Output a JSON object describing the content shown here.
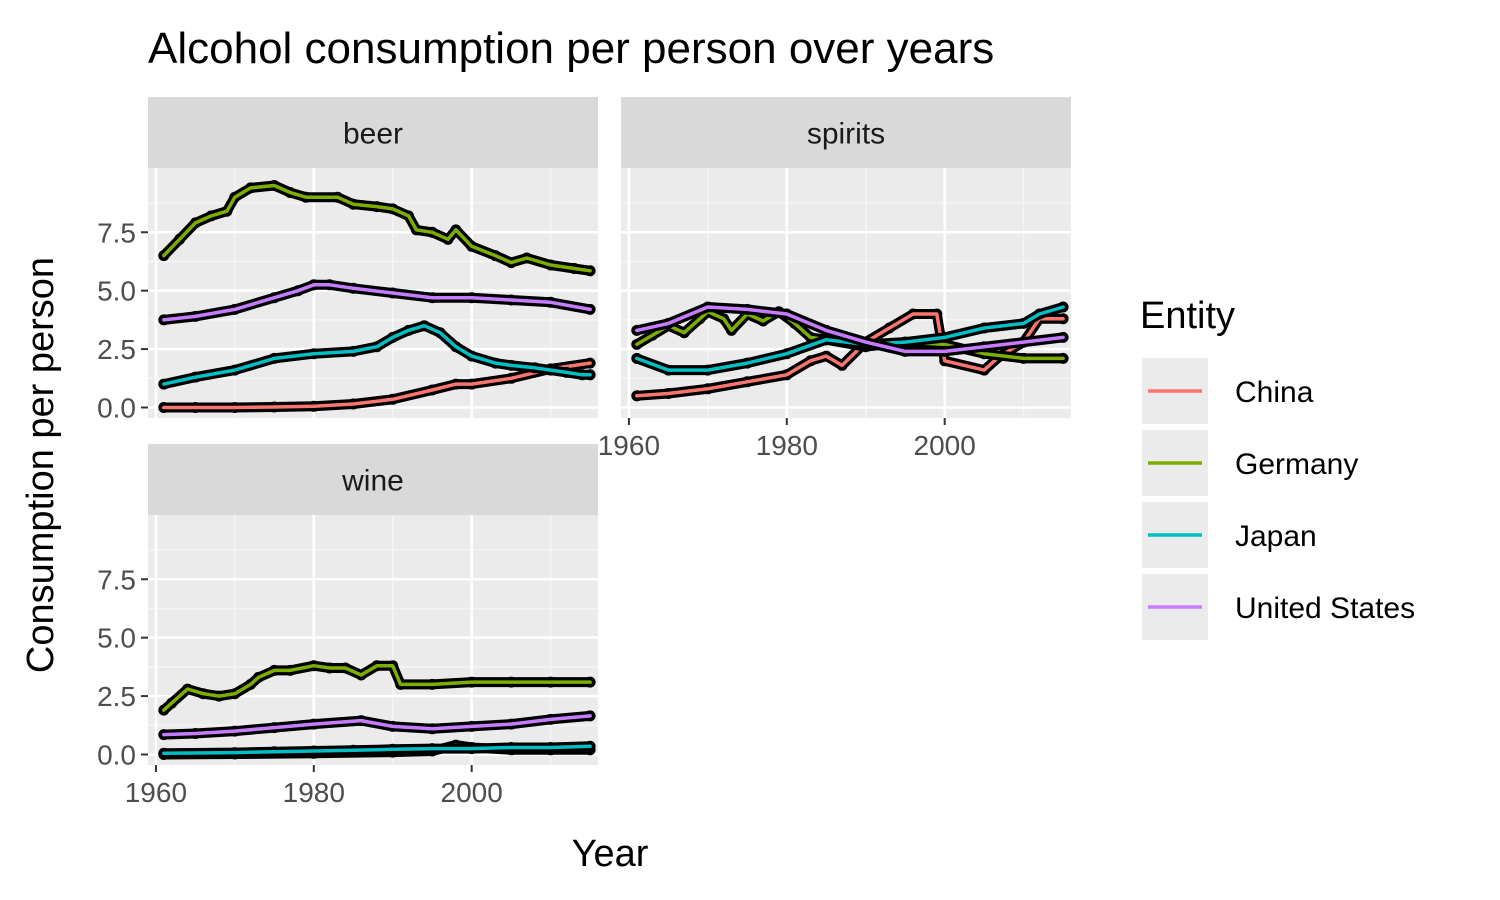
{
  "chart_data": {
    "type": "line",
    "title": "Alcohol consumption per person over years",
    "xlabel": "Year",
    "ylabel": "Consumption per person",
    "xlim": [
      1959,
      2016
    ],
    "ylim": [
      -0.45,
      10.25
    ],
    "x_ticks": [
      1960,
      1980,
      2000
    ],
    "y_ticks": [
      0.0,
      2.5,
      5.0,
      7.5
    ],
    "y_tick_labels": [
      "0.0",
      "2.5",
      "5.0",
      "7.5"
    ],
    "grid": true,
    "point_outline_color": "#000000",
    "legend": {
      "title": "Entity",
      "position": "right",
      "entries": [
        {
          "name": "China",
          "color": "#F8766D"
        },
        {
          "name": "Germany",
          "color": "#7CAE00"
        },
        {
          "name": "Japan",
          "color": "#00BFC4"
        },
        {
          "name": "United States",
          "color": "#C77CFF"
        }
      ]
    },
    "facets": [
      {
        "label": "beer",
        "series": [
          {
            "name": "China",
            "x": [
              1961,
              1965,
              1970,
              1975,
              1980,
              1985,
              1990,
              1995,
              1998,
              2000,
              2005,
              2010,
              2015
            ],
            "values": [
              0.0,
              0.0,
              0.0,
              0.02,
              0.05,
              0.15,
              0.35,
              0.75,
              1.0,
              1.0,
              1.25,
              1.65,
              1.9
            ]
          },
          {
            "name": "Germany",
            "x": [
              1961,
              1963,
              1965,
              1967,
              1969,
              1970,
              1972,
              1975,
              1977,
              1979,
              1983,
              1985,
              1988,
              1990,
              1992,
              1993,
              1995,
              1997,
              1998,
              2000,
              2003,
              2005,
              2007,
              2010,
              2013,
              2015
            ],
            "values": [
              6.5,
              7.2,
              7.9,
              8.2,
              8.4,
              9.0,
              9.4,
              9.5,
              9.2,
              9.0,
              9.0,
              8.7,
              8.6,
              8.5,
              8.2,
              7.6,
              7.5,
              7.2,
              7.6,
              6.9,
              6.5,
              6.2,
              6.4,
              6.1,
              5.95,
              5.85
            ]
          },
          {
            "name": "Japan",
            "x": [
              1961,
              1965,
              1970,
              1975,
              1980,
              1985,
              1988,
              1990,
              1992,
              1994,
              1996,
              1998,
              2000,
              2003,
              2005,
              2008,
              2010,
              2012,
              2014,
              2015
            ],
            "values": [
              1.0,
              1.3,
              1.6,
              2.1,
              2.3,
              2.4,
              2.6,
              3.0,
              3.3,
              3.5,
              3.2,
              2.6,
              2.2,
              1.9,
              1.8,
              1.7,
              1.6,
              1.5,
              1.4,
              1.4
            ]
          },
          {
            "name": "United States",
            "x": [
              1961,
              1965,
              1970,
              1975,
              1978,
              1980,
              1982,
              1985,
              1990,
              1995,
              2000,
              2005,
              2010,
              2015
            ],
            "values": [
              3.75,
              3.9,
              4.2,
              4.7,
              5.0,
              5.25,
              5.25,
              5.1,
              4.9,
              4.7,
              4.7,
              4.6,
              4.5,
              4.2
            ]
          }
        ]
      },
      {
        "label": "spirits",
        "series": [
          {
            "name": "China",
            "x": [
              1961,
              1965,
              1970,
              1975,
              1980,
              1983,
              1985,
              1987,
              1990,
              1993,
              1996,
              1999,
              2000,
              2005,
              2007,
              2010,
              2012,
              2015
            ],
            "values": [
              0.5,
              0.6,
              0.8,
              1.1,
              1.4,
              2.0,
              2.2,
              1.8,
              2.8,
              3.4,
              4.0,
              4.0,
              2.0,
              1.6,
              2.2,
              2.8,
              3.8,
              3.8
            ]
          },
          {
            "name": "Germany",
            "x": [
              1961,
              1963,
              1965,
              1967,
              1969,
              1970,
              1972,
              1973,
              1975,
              1977,
              1979,
              1981,
              1983,
              1985,
              1990,
              1995,
              2000,
              2005,
              2010,
              2015
            ],
            "values": [
              2.7,
              3.1,
              3.5,
              3.2,
              3.8,
              4.1,
              3.8,
              3.3,
              4.0,
              3.7,
              4.1,
              3.6,
              3.0,
              2.9,
              2.6,
              2.8,
              2.7,
              2.3,
              2.1,
              2.1
            ]
          },
          {
            "name": "Japan",
            "x": [
              1961,
              1965,
              1970,
              1975,
              1980,
              1985,
              1990,
              1995,
              2000,
              2005,
              2010,
              2012,
              2015
            ],
            "values": [
              2.1,
              1.6,
              1.6,
              1.9,
              2.3,
              2.9,
              2.7,
              2.8,
              3.0,
              3.4,
              3.6,
              4.0,
              4.3
            ]
          },
          {
            "name": "United States",
            "x": [
              1961,
              1965,
              1970,
              1975,
              1980,
              1985,
              1990,
              1995,
              2000,
              2005,
              2010,
              2015
            ],
            "values": [
              3.3,
              3.6,
              4.3,
              4.2,
              4.0,
              3.3,
              2.8,
              2.4,
              2.4,
              2.6,
              2.8,
              3.0
            ]
          }
        ]
      },
      {
        "label": "wine",
        "series": [
          {
            "name": "China",
            "x": [
              1961,
              1970,
              1980,
              1990,
              1995,
              1998,
              2000,
              2005,
              2010,
              2015
            ],
            "values": [
              0.0,
              0.02,
              0.05,
              0.1,
              0.15,
              0.4,
              0.3,
              0.2,
              0.2,
              0.2
            ]
          },
          {
            "name": "Germany",
            "x": [
              1961,
              1962,
              1964,
              1966,
              1968,
              1970,
              1972,
              1973,
              1975,
              1977,
              1980,
              1982,
              1984,
              1986,
              1988,
              1990,
              1991,
              1995,
              2000,
              2005,
              2010,
              2015
            ],
            "values": [
              1.9,
              2.2,
              2.8,
              2.6,
              2.5,
              2.6,
              3.0,
              3.3,
              3.6,
              3.6,
              3.8,
              3.7,
              3.7,
              3.4,
              3.8,
              3.8,
              3.0,
              3.0,
              3.1,
              3.1,
              3.1,
              3.1
            ]
          },
          {
            "name": "Japan",
            "x": [
              1961,
              1970,
              1975,
              1980,
              1985,
              1990,
              1995,
              2000,
              2005,
              2010,
              2015
            ],
            "values": [
              0.05,
              0.08,
              0.12,
              0.15,
              0.18,
              0.22,
              0.25,
              0.25,
              0.3,
              0.3,
              0.35
            ]
          },
          {
            "name": "United States",
            "x": [
              1961,
              1965,
              1970,
              1975,
              1980,
              1986,
              1990,
              1995,
              2000,
              2005,
              2010,
              2015
            ],
            "values": [
              0.85,
              0.9,
              1.0,
              1.15,
              1.3,
              1.45,
              1.2,
              1.1,
              1.2,
              1.3,
              1.5,
              1.65
            ]
          }
        ]
      }
    ]
  }
}
